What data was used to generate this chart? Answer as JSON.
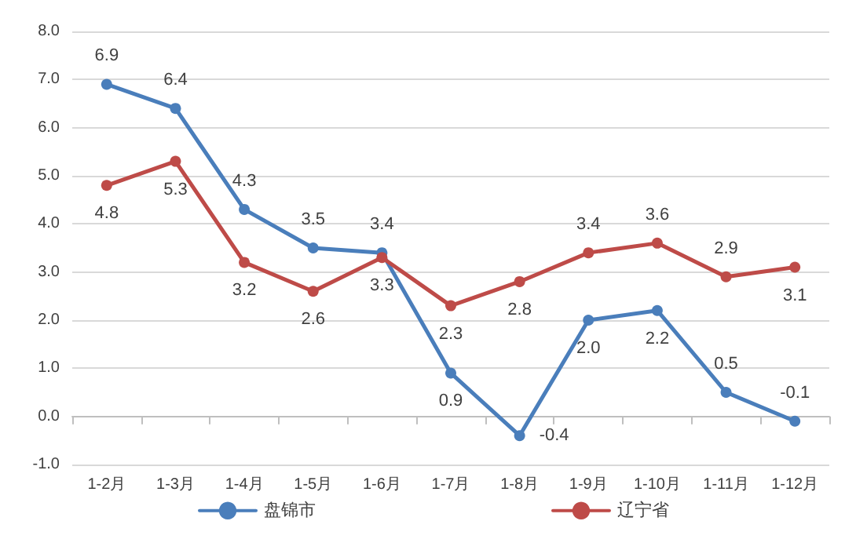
{
  "chart_data": {
    "type": "line",
    "categories": [
      "1-2月",
      "1-3月",
      "1-4月",
      "1-5月",
      "1-6月",
      "1-7月",
      "1-8月",
      "1-9月",
      "1-10月",
      "1-11月",
      "1-12月"
    ],
    "series": [
      {
        "name": "盘锦市",
        "color": "#4a7ebb",
        "values": [
          6.9,
          6.4,
          4.3,
          3.5,
          3.4,
          0.9,
          -0.4,
          2.0,
          2.2,
          0.5,
          -0.1
        ],
        "value_labels": [
          "6.9",
          "6.4",
          "4.3",
          "3.5",
          "3.4",
          "0.9",
          "-0.4",
          "2.0",
          "2.2",
          "0.5",
          "-0.1"
        ]
      },
      {
        "name": "辽宁省",
        "color": "#be4b48",
        "values": [
          4.8,
          5.3,
          3.2,
          2.6,
          3.3,
          2.3,
          2.8,
          3.4,
          3.6,
          2.9,
          3.1
        ],
        "value_labels": [
          "4.8",
          "5.3",
          "3.2",
          "2.6",
          "3.3",
          "2.3",
          "2.8",
          "3.4",
          "3.6",
          "2.9",
          "3.1"
        ]
      }
    ],
    "ylim": [
      -1,
      8
    ],
    "yticks": [
      {
        "value": -1,
        "label": "-1.0"
      },
      {
        "value": 0,
        "label": "0.0"
      },
      {
        "value": 1,
        "label": "1.0"
      },
      {
        "value": 2,
        "label": "2.0"
      },
      {
        "value": 3,
        "label": "3.0"
      },
      {
        "value": 4,
        "label": "4.0"
      },
      {
        "value": 5,
        "label": "5.0"
      },
      {
        "value": 6,
        "label": "6.0"
      },
      {
        "value": 7,
        "label": "7.0"
      },
      {
        "value": 8,
        "label": "8.0"
      }
    ],
    "grid": "y",
    "legend": "bottom",
    "marker": "circle",
    "line_style": "solid"
  }
}
